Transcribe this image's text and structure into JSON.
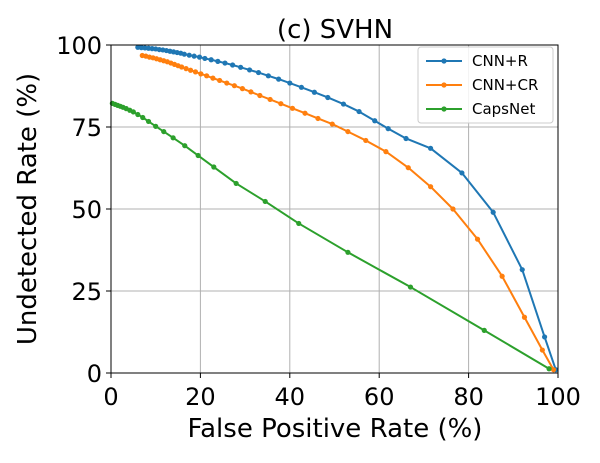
{
  "chart_data": {
    "type": "line",
    "title": "(c) SVHN",
    "xlabel": "False Positive Rate (%)",
    "ylabel": "Undetected Rate (%)",
    "xlim": [
      0,
      100
    ],
    "ylim": [
      0,
      100
    ],
    "xticks": [
      0,
      20,
      40,
      60,
      80,
      100
    ],
    "yticks": [
      0,
      25,
      50,
      75,
      100
    ],
    "grid": true,
    "legend_position": "top-right",
    "series": [
      {
        "name": "CNN+R",
        "color": "#1f77b4",
        "x": [
          6.0,
          6.8,
          7.6,
          8.4,
          9.2,
          10.0,
          10.8,
          11.6,
          12.4,
          13.2,
          14.0,
          14.8,
          15.6,
          16.4,
          17.5,
          18.6,
          19.8,
          21.0,
          22.4,
          23.9,
          25.5,
          27.2,
          29.0,
          31.0,
          33.0,
          35.2,
          37.5,
          40.0,
          42.6,
          45.5,
          48.5,
          52.0,
          55.5,
          59.0,
          62.0,
          66.0,
          71.5,
          78.5,
          85.5,
          92.0,
          97.0,
          99.5
        ],
        "y": [
          99.3,
          99.2,
          99.1,
          99.0,
          98.9,
          98.8,
          98.6,
          98.5,
          98.3,
          98.1,
          97.9,
          97.7,
          97.5,
          97.2,
          96.9,
          96.6,
          96.3,
          95.9,
          95.5,
          95.0,
          94.5,
          93.9,
          93.2,
          92.4,
          91.6,
          90.6,
          89.6,
          88.4,
          87.1,
          85.6,
          84.0,
          82.0,
          79.7,
          76.9,
          74.5,
          71.5,
          68.5,
          61.0,
          49.0,
          31.5,
          11.0,
          1.0
        ]
      },
      {
        "name": "CNN+CR",
        "color": "#ff7f0e",
        "x": [
          7.0,
          7.8,
          8.6,
          9.4,
          10.2,
          11.0,
          11.8,
          12.6,
          13.4,
          14.2,
          15.0,
          15.8,
          16.8,
          17.8,
          18.9,
          20.1,
          21.4,
          22.8,
          24.3,
          25.9,
          27.6,
          29.4,
          31.3,
          33.3,
          35.6,
          38.0,
          40.6,
          43.4,
          46.3,
          49.5,
          53.0,
          57.0,
          61.5,
          66.5,
          71.5,
          76.5,
          82.0,
          87.5,
          92.5,
          96.5,
          99.0
        ],
        "y": [
          96.8,
          96.6,
          96.3,
          96.1,
          95.8,
          95.5,
          95.2,
          94.9,
          94.5,
          94.1,
          93.7,
          93.3,
          92.8,
          92.3,
          91.8,
          91.2,
          90.6,
          89.9,
          89.2,
          88.4,
          87.6,
          86.7,
          85.7,
          84.6,
          83.4,
          82.1,
          80.7,
          79.2,
          77.6,
          75.9,
          73.6,
          70.9,
          67.5,
          62.6,
          56.8,
          50.0,
          40.8,
          29.5,
          17.0,
          7.0,
          1.0
        ]
      },
      {
        "name": "CapsNet",
        "color": "#2ca02c",
        "x": [
          0.3,
          0.9,
          1.5,
          2.1,
          2.7,
          3.4,
          4.2,
          5.0,
          6.0,
          7.1,
          8.4,
          10.0,
          11.8,
          13.9,
          16.5,
          19.5,
          23.0,
          28.0,
          34.5,
          42.0,
          53.0,
          67.0,
          83.5,
          98.0
        ],
        "y": [
          82.2,
          81.9,
          81.6,
          81.3,
          81.0,
          80.6,
          80.1,
          79.6,
          78.8,
          77.9,
          76.7,
          75.2,
          73.6,
          71.7,
          69.3,
          66.3,
          62.8,
          57.8,
          52.3,
          45.6,
          36.8,
          26.2,
          13.0,
          1.3
        ]
      }
    ]
  }
}
